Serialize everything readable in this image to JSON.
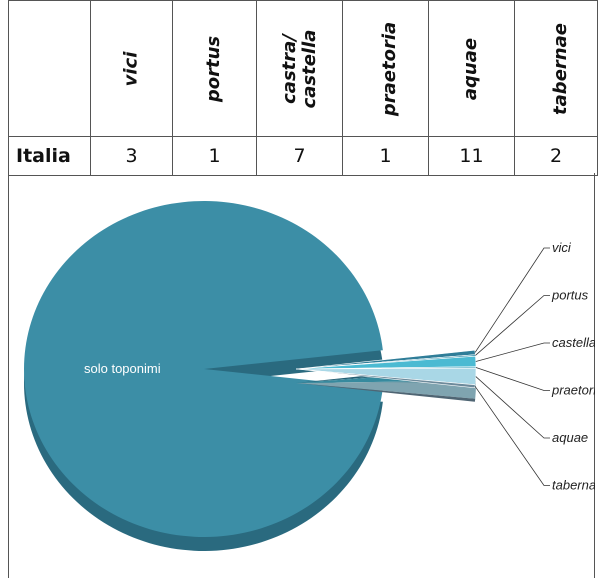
{
  "table": {
    "columns": [
      "",
      "vici",
      "portus",
      "castra/ castella",
      "praetoria",
      "aquae",
      "tabernae"
    ],
    "row_label": "Italia",
    "values": [
      "3",
      "1",
      "7",
      "1",
      "11",
      "2"
    ]
  },
  "chart_data": {
    "type": "pie",
    "title": "",
    "slices": [
      {
        "label": "solo toponimi",
        "value": 675,
        "color": "#3c8ea6",
        "dark": "#2a6a7f"
      },
      {
        "label": "vici",
        "value": 3,
        "color": "#2f7d98",
        "dark": "#235e73"
      },
      {
        "label": "portus",
        "value": 1,
        "color": "#3a95b0",
        "dark": "#2a6f84"
      },
      {
        "label": "castella",
        "value": 7,
        "color": "#4bbad2",
        "dark": "#378a9e"
      },
      {
        "label": "praetoria",
        "value": 1,
        "color": "#7fbfd0",
        "dark": "#5d909e"
      },
      {
        "label": "aquae",
        "value": 11,
        "color": "#a9d7e6",
        "dark": "#7fa4b0"
      },
      {
        "label": "tabernae",
        "value": 2,
        "color": "#6d8a9b",
        "dark": "#4f6573"
      }
    ],
    "colors": {
      "main": "#3c8ea6",
      "main_side": "#2a6a7f",
      "leader": "#333333"
    }
  }
}
